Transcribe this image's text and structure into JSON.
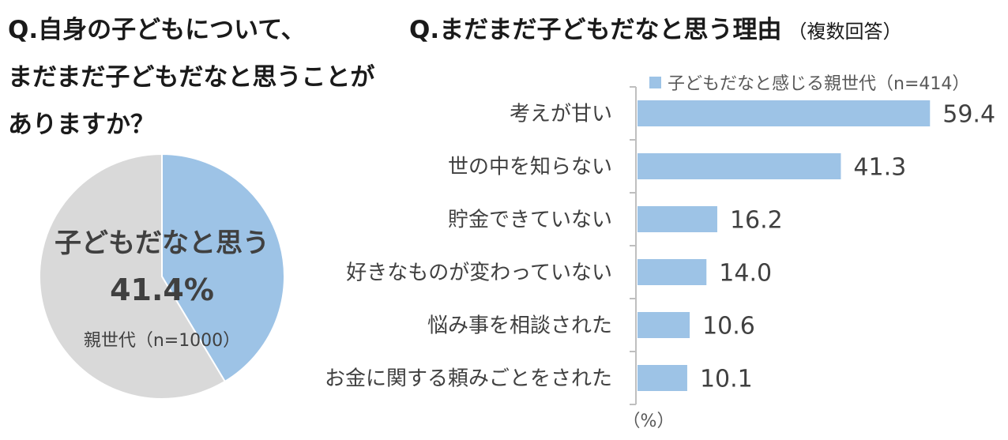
{
  "left": {
    "title_lines": [
      "Q.自身の子どもについて、",
      "まだまだ子どもだなと思うことが",
      "ありますか？"
    ],
    "pie_label": "子どもだなと思う",
    "pie_value_text": "41.4%",
    "pie_sample": "親世代（n=1000）"
  },
  "right": {
    "title": "Q.まだまだ子どもだなと思う理由",
    "title_note": "（複数回答）",
    "legend": "子どもだなと感じる親世代（n=414）",
    "unit": "（%）"
  },
  "colors": {
    "highlight": "#9dc3e6",
    "rest": "#d9d9d9",
    "text": "#404040"
  },
  "chart_data": [
    {
      "type": "pie",
      "slices": [
        {
          "label": "子どもだなと思う",
          "value": 41.4,
          "color": "#9dc3e6"
        },
        {
          "label": "",
          "value": 58.6,
          "color": "#d9d9d9"
        }
      ]
    },
    {
      "type": "bar",
      "orientation": "horizontal",
      "categories": [
        "考えが甘い",
        "世の中を知らない",
        "貯金できていない",
        "好きなものが変わっていない",
        "悩み事を相談された",
        "お金に関する頼みごとをされた"
      ],
      "series": [
        {
          "name": "子どもだなと感じる親世代（n=414）",
          "values": [
            59.4,
            41.3,
            16.2,
            14.0,
            10.6,
            10.1
          ],
          "labels": [
            "59.4",
            "41.3",
            "16.2",
            "14.0",
            "10.6",
            "10.1"
          ]
        }
      ],
      "xlim": [
        0,
        60
      ],
      "xlabel": "（%）",
      "legend_position": "top-right",
      "grid": false
    }
  ]
}
